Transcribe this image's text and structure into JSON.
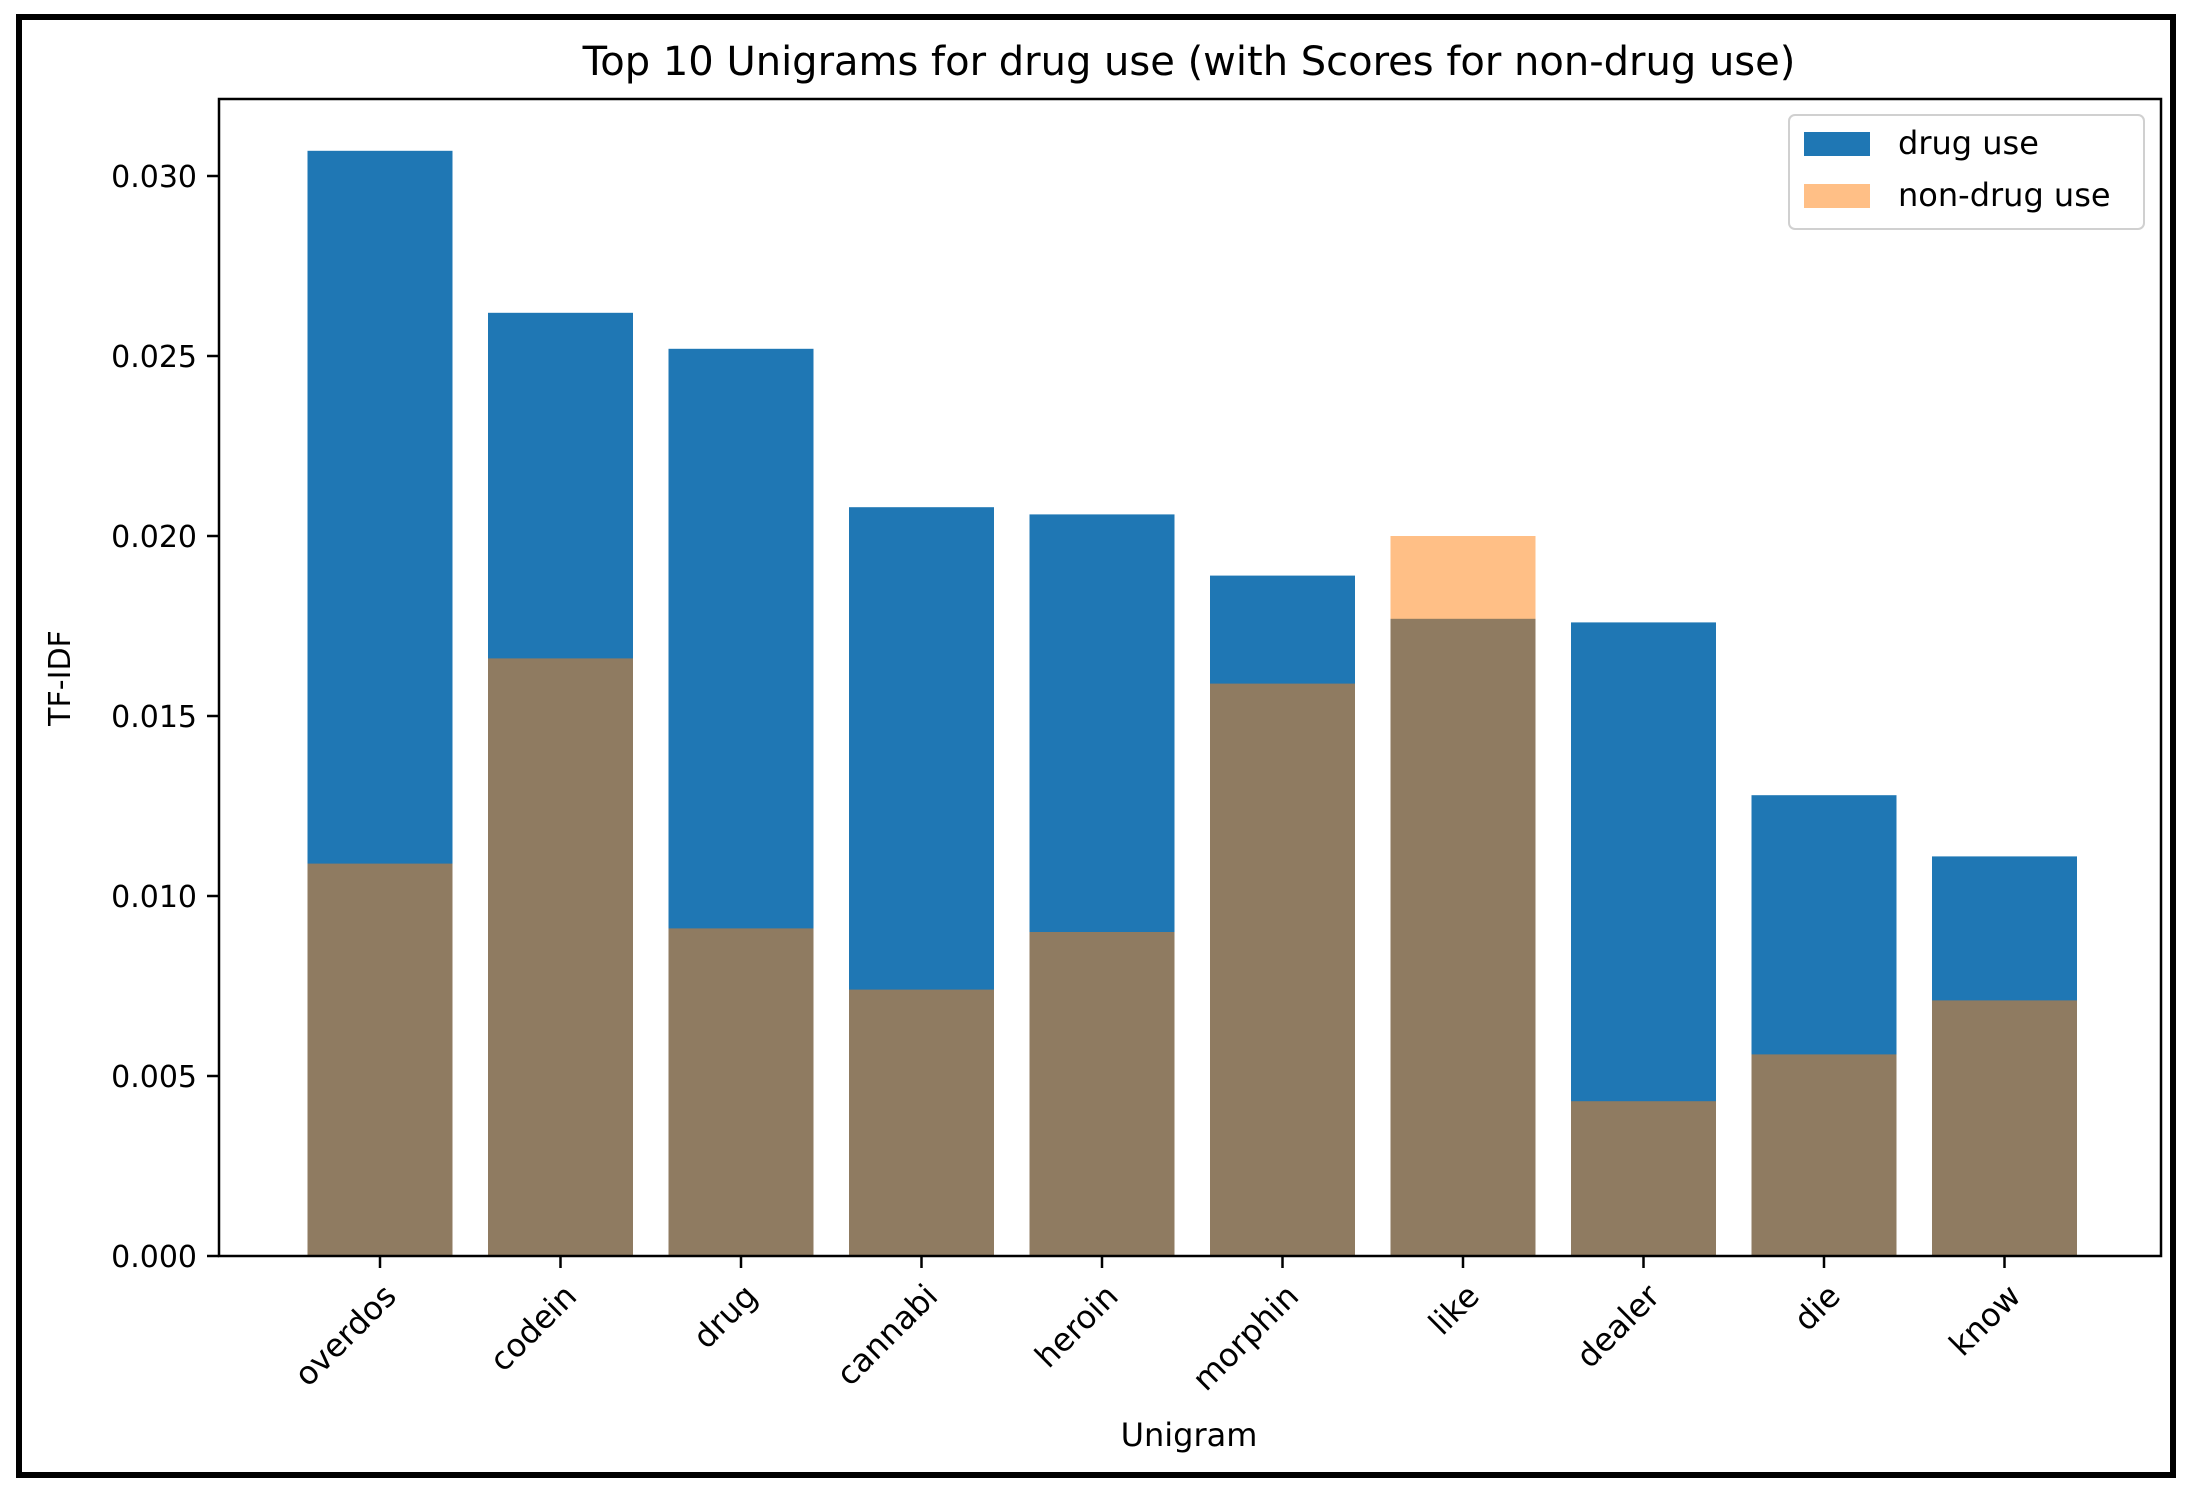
{
  "chart_data": {
    "type": "bar",
    "title": "Top 10 Unigrams for drug use (with Scores for non-drug use)",
    "xlabel": "Unigram",
    "ylabel": "TF-IDF",
    "ylim": [
      0,
      0.0322
    ],
    "yticks": [
      "0.000",
      "0.005",
      "0.010",
      "0.015",
      "0.020",
      "0.025",
      "0.030"
    ],
    "ytick_values": [
      0,
      0.005,
      0.01,
      0.015,
      0.02,
      0.025,
      0.03
    ],
    "categories": [
      "overdos",
      "codein",
      "drug",
      "cannabi",
      "heroin",
      "morphin",
      "like",
      "dealer",
      "die",
      "know"
    ],
    "series": [
      {
        "name": "drug use",
        "color": "#1f77b4",
        "values": [
          0.0307,
          0.0262,
          0.0252,
          0.0208,
          0.0206,
          0.0189,
          0.0177,
          0.0176,
          0.0128,
          0.0111
        ]
      },
      {
        "name": "non-drug use",
        "color": "#ff7f0e",
        "opacity": 0.5,
        "values": [
          0.0109,
          0.0166,
          0.0091,
          0.0074,
          0.009,
          0.0159,
          0.02,
          0.0043,
          0.0056,
          0.0071
        ]
      }
    ],
    "legend": "top-right",
    "grid": false
  }
}
